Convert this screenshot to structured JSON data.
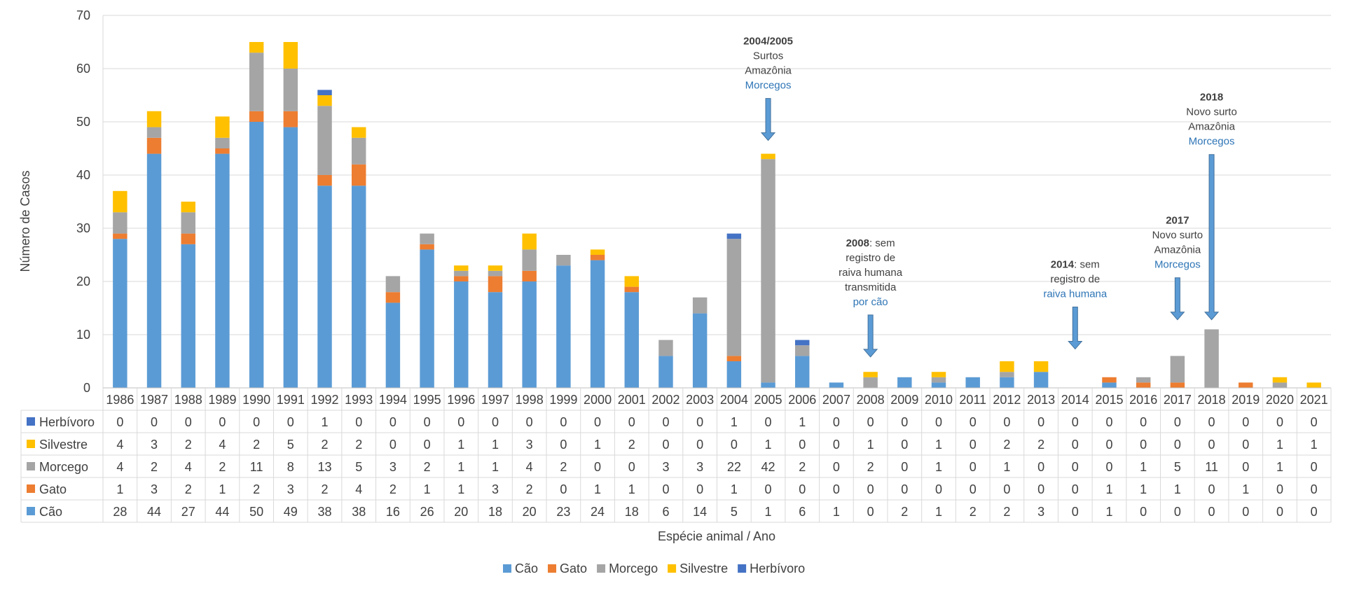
{
  "chart_data": {
    "type": "bar",
    "stacked": true,
    "ylabel": "Número de Casos",
    "xlabel": "Espécie animal / Ano",
    "ylim": [
      0,
      70
    ],
    "yticks": [
      0,
      10,
      20,
      30,
      40,
      50,
      60,
      70
    ],
    "grid": true,
    "legend_position": "bottom",
    "categories": [
      "1986",
      "1987",
      "1988",
      "1989",
      "1990",
      "1991",
      "1992",
      "1993",
      "1994",
      "1995",
      "1996",
      "1997",
      "1998",
      "1999",
      "2000",
      "2001",
      "2002",
      "2003",
      "2004",
      "2005",
      "2006",
      "2007",
      "2008",
      "2009",
      "2010",
      "2011",
      "2012",
      "2013",
      "2014",
      "2015",
      "2016",
      "2017",
      "2018",
      "2019",
      "2020",
      "2021"
    ],
    "series": [
      {
        "name": "Cão",
        "color": "#5b9bd5",
        "values": [
          28,
          44,
          27,
          44,
          50,
          49,
          38,
          38,
          16,
          26,
          20,
          18,
          20,
          23,
          24,
          18,
          6,
          14,
          5,
          1,
          6,
          1,
          0,
          2,
          1,
          2,
          2,
          3,
          0,
          1,
          0,
          0,
          0,
          0,
          0,
          0
        ]
      },
      {
        "name": "Gato",
        "color": "#ed7d31",
        "values": [
          1,
          3,
          2,
          1,
          2,
          3,
          2,
          4,
          2,
          1,
          1,
          3,
          2,
          0,
          1,
          1,
          0,
          0,
          1,
          0,
          0,
          0,
          0,
          0,
          0,
          0,
          0,
          0,
          0,
          1,
          1,
          1,
          0,
          1,
          0,
          0
        ]
      },
      {
        "name": "Morcego",
        "color": "#a5a5a5",
        "values": [
          4,
          2,
          4,
          2,
          11,
          8,
          13,
          5,
          3,
          2,
          1,
          1,
          4,
          2,
          0,
          0,
          3,
          3,
          22,
          42,
          2,
          0,
          2,
          0,
          1,
          0,
          1,
          0,
          0,
          0,
          1,
          5,
          11,
          0,
          1,
          0
        ]
      },
      {
        "name": "Silvestre",
        "color": "#ffc000",
        "values": [
          4,
          3,
          2,
          4,
          2,
          5,
          2,
          2,
          0,
          0,
          1,
          1,
          3,
          0,
          1,
          2,
          0,
          0,
          0,
          1,
          0,
          0,
          1,
          0,
          1,
          0,
          2,
          2,
          0,
          0,
          0,
          0,
          0,
          0,
          1,
          1
        ]
      },
      {
        "name": "Herbívoro",
        "color": "#4472c4",
        "values": [
          0,
          0,
          0,
          0,
          0,
          0,
          1,
          0,
          0,
          0,
          0,
          0,
          0,
          0,
          0,
          0,
          0,
          0,
          1,
          0,
          1,
          0,
          0,
          0,
          0,
          0,
          0,
          0,
          0,
          0,
          0,
          0,
          0,
          0,
          0,
          0
        ]
      }
    ],
    "table_row_order": [
      "Herbívoro",
      "Silvestre",
      "Morcego",
      "Gato",
      "Cão"
    ],
    "annotations": [
      {
        "year": "2005",
        "target_value": 46.5,
        "lines": [
          {
            "text": "2004/2005",
            "style": "bold"
          },
          {
            "text": "Surtos",
            "style": "normal"
          },
          {
            "text": "Amazônia",
            "style": "normal"
          },
          {
            "text": "Morcegos",
            "style": "blue"
          }
        ]
      },
      {
        "year": "2008",
        "target_value": 5.8,
        "lines": [
          {
            "parts": [
              {
                "text": "2008",
                "style": "bold"
              },
              {
                "text": ": sem",
                "style": "normal"
              }
            ]
          },
          {
            "text": "registro de",
            "style": "normal"
          },
          {
            "text": "raiva humana",
            "style": "normal"
          },
          {
            "text": "transmitida",
            "style": "normal"
          },
          {
            "text": "por cão",
            "style": "blue"
          }
        ]
      },
      {
        "year": "2014",
        "target_value": 7.3,
        "lines": [
          {
            "parts": [
              {
                "text": "2014",
                "style": "bold"
              },
              {
                "text": ": sem",
                "style": "normal"
              }
            ]
          },
          {
            "text": "registro de",
            "style": "normal"
          },
          {
            "text": "raiva humana",
            "style": "blue"
          }
        ]
      },
      {
        "year": "2017",
        "target_value": 12.8,
        "lines": [
          {
            "text": "2017",
            "style": "bold"
          },
          {
            "text": "Novo surto",
            "style": "normal"
          },
          {
            "text": "Amazônia",
            "style": "normal"
          },
          {
            "text": "Morcegos",
            "style": "blue"
          }
        ]
      },
      {
        "year": "2018",
        "target_value": 12.8,
        "lines": [
          {
            "text": "2018",
            "style": "bold"
          },
          {
            "text": "Novo surto",
            "style": "normal"
          },
          {
            "text": "Amazônia",
            "style": "normal"
          },
          {
            "text": "Morcegos",
            "style": "blue"
          }
        ]
      }
    ]
  }
}
